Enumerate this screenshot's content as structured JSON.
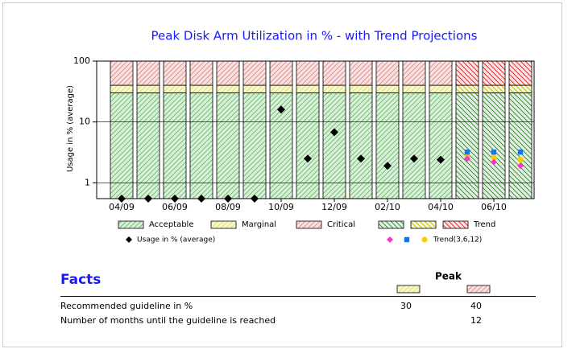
{
  "chart_data": {
    "type": "bar",
    "title": "Peak Disk Arm Utilization in % - with Trend Projections",
    "y_label": "Usage in % (average)",
    "categories": [
      "04/09",
      null,
      "06/09",
      null,
      "08/09",
      null,
      "10/09",
      null,
      "12/09",
      null,
      "02/10",
      null,
      "04/10",
      null,
      "06/10",
      null
    ],
    "ylim": [
      0.55,
      100
    ],
    "yticks": [
      1,
      10,
      100
    ],
    "log_y": true,
    "grid": true,
    "bands": [
      {
        "name": "Acceptable",
        "color": "#33bb33",
        "values": [
          30,
          30,
          30,
          30,
          30,
          30,
          30,
          30,
          30,
          30,
          30,
          30,
          30,
          null,
          null,
          null
        ]
      },
      {
        "name": "Marginal",
        "color": "#dddd00",
        "values": [
          10,
          10,
          10,
          10,
          10,
          10,
          10,
          10,
          10,
          10,
          10,
          10,
          10,
          null,
          null,
          null
        ]
      },
      {
        "name": "Critical",
        "color": "#ee6666",
        "values": [
          60,
          60,
          60,
          60,
          60,
          60,
          60,
          60,
          60,
          60,
          60,
          60,
          60,
          null,
          null,
          null
        ]
      }
    ],
    "trend_bands": {
      "name": "Trend",
      "series": [
        {
          "color": "#2e7d2e",
          "values": [
            null,
            null,
            null,
            null,
            null,
            null,
            null,
            null,
            null,
            null,
            null,
            null,
            null,
            30,
            30,
            30
          ]
        },
        {
          "color": "#b5b500",
          "values": [
            null,
            null,
            null,
            null,
            null,
            null,
            null,
            null,
            null,
            null,
            null,
            null,
            null,
            10,
            10,
            10
          ]
        },
        {
          "color": "#cc2222",
          "values": [
            null,
            null,
            null,
            null,
            null,
            null,
            null,
            null,
            null,
            null,
            null,
            null,
            null,
            60,
            60,
            60
          ]
        }
      ]
    },
    "usage": {
      "name": "Usage in % (average)",
      "color": "#000000",
      "marker": "diamond",
      "values": [
        0.55,
        0.55,
        0.55,
        0.55,
        0.55,
        0.55,
        16,
        2.5,
        6.8,
        2.5,
        1.9,
        2.5,
        2.4,
        null,
        null,
        null
      ]
    },
    "trend_points": {
      "name": "Trend(3,6,12)",
      "series": [
        {
          "color": "#ff33cc",
          "marker": "diamond",
          "values": [
            null,
            null,
            null,
            null,
            null,
            null,
            null,
            null,
            null,
            null,
            null,
            null,
            null,
            2.5,
            2.2,
            1.9
          ]
        },
        {
          "color": "#1177ee",
          "marker": "square",
          "values": [
            null,
            null,
            null,
            null,
            null,
            null,
            null,
            null,
            null,
            null,
            null,
            null,
            null,
            3.2,
            3.2,
            3.2
          ]
        },
        {
          "color": "#ffcc00",
          "marker": "circle",
          "values": [
            null,
            null,
            null,
            null,
            null,
            null,
            null,
            null,
            null,
            null,
            null,
            null,
            null,
            2.8,
            2.6,
            2.4
          ]
        }
      ]
    }
  },
  "facts": {
    "title": "Facts",
    "column": "Peak",
    "rows": [
      {
        "label": "Recommended guideline in %",
        "values": [
          30,
          40
        ]
      },
      {
        "label": "Number of months until the guideline is reached",
        "values": [
          null,
          12
        ]
      }
    ]
  }
}
